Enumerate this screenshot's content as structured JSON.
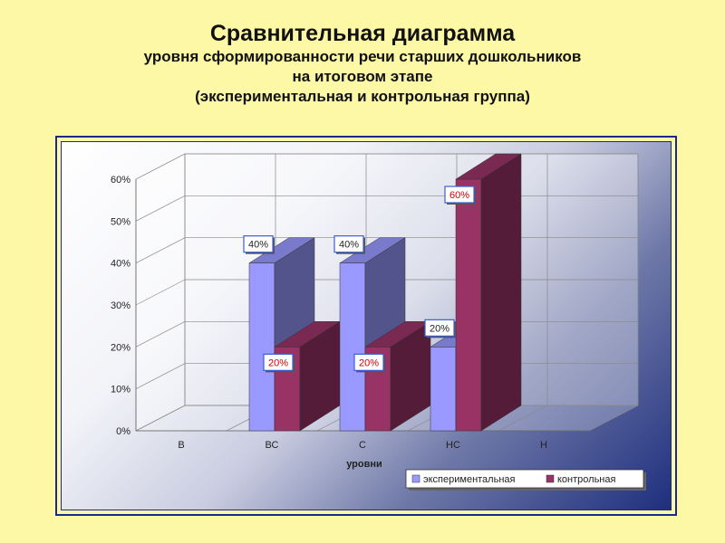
{
  "title": {
    "line1": "Сравнительная диаграмма",
    "line2": "уровня сформированности речи старших дошкольников",
    "line3": "на итоговом этапе",
    "line4": "(экспериментальная и контрольная группа)"
  },
  "chart_data": {
    "type": "bar",
    "categories": [
      "В",
      "ВС",
      "С",
      "НС",
      "Н"
    ],
    "series": [
      {
        "name": "экспериментальная",
        "values": [
          0,
          40,
          40,
          20,
          0
        ],
        "color": "#9999ff",
        "labels": [
          "",
          "40%",
          "40%",
          "20%",
          ""
        ]
      },
      {
        "name": "контрольная",
        "values": [
          0,
          20,
          20,
          60,
          0
        ],
        "color": "#993366",
        "labels": [
          "",
          "20%",
          "20%",
          "60%",
          ""
        ]
      }
    ],
    "yticks": [
      "0%",
      "10%",
      "20%",
      "30%",
      "40%",
      "50%",
      "60%"
    ],
    "ylim": [
      0,
      60
    ],
    "xlabel": "уровни",
    "ylabel": "",
    "grid": true,
    "legend": "bottom-right"
  }
}
